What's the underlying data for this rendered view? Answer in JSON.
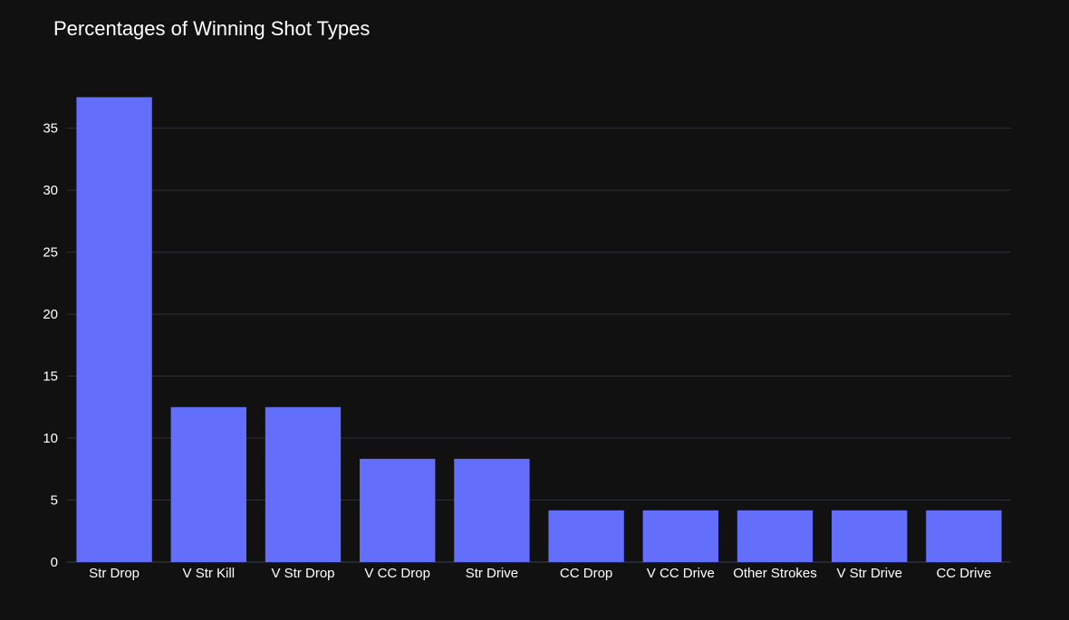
{
  "chart_data": {
    "type": "bar",
    "title": "Percentages of Winning Shot Types",
    "xlabel": "",
    "ylabel": "",
    "categories": [
      "Str Drop",
      "V Str Kill",
      "V Str Drop",
      "V CC Drop",
      "Str Drive",
      "CC Drop",
      "V CC Drive",
      "Other Strokes",
      "V Str Drive",
      "CC Drive"
    ],
    "values": [
      37.5,
      12.5,
      12.5,
      8.33,
      8.33,
      4.17,
      4.17,
      4.17,
      4.17,
      4.17
    ],
    "ylim": [
      0,
      39.5
    ],
    "yticks": [
      0,
      5,
      10,
      15,
      20,
      25,
      30,
      35
    ],
    "grid": true,
    "legend": "none",
    "colors": {
      "background": "#111111",
      "bar": "#636efa",
      "grid": "#2b2f3a",
      "text": "#ffffff"
    }
  }
}
